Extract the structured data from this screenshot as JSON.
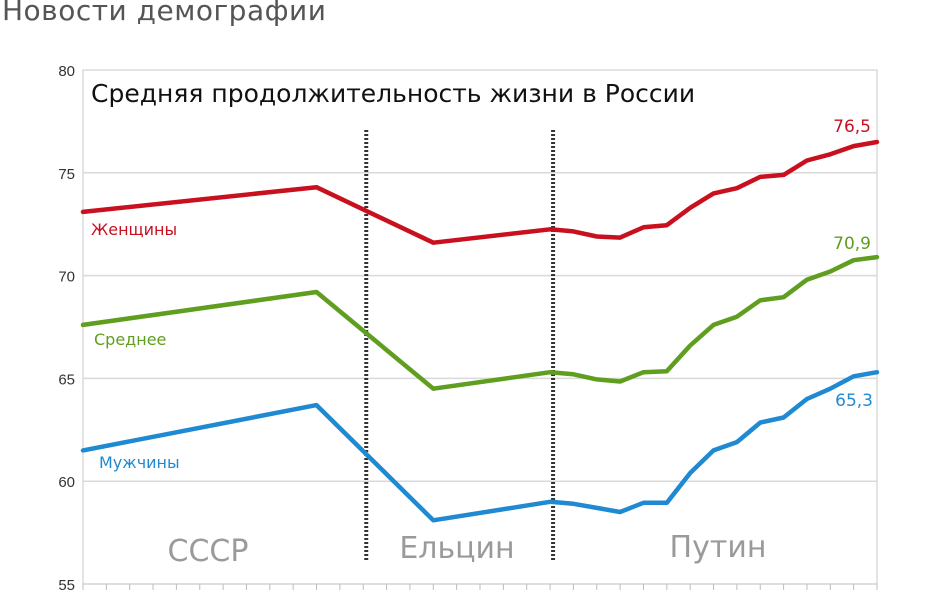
{
  "header": {
    "site_title": "Новости демографии"
  },
  "chart_data": {
    "type": "line",
    "title": "Средняя продолжительность жизни в России",
    "ylim": [
      55,
      80
    ],
    "yticks": [
      55,
      60,
      65,
      70,
      75,
      80
    ],
    "grid": true,
    "x_index_range": [
      0,
      34
    ],
    "series": [
      {
        "name": "Женщины",
        "color": "#c8101e",
        "end_label": "76,5",
        "points": [
          [
            0,
            73.1
          ],
          [
            10,
            74.3
          ],
          [
            15,
            71.6
          ],
          [
            20,
            72.25
          ],
          [
            21,
            72.15
          ],
          [
            22,
            71.9
          ],
          [
            23,
            71.85
          ],
          [
            24,
            72.35
          ],
          [
            25,
            72.45
          ],
          [
            26,
            73.3
          ],
          [
            27,
            74.0
          ],
          [
            28,
            74.25
          ],
          [
            29,
            74.8
          ],
          [
            30,
            74.9
          ],
          [
            31,
            75.6
          ],
          [
            32,
            75.9
          ],
          [
            33,
            76.3
          ],
          [
            34,
            76.5
          ]
        ]
      },
      {
        "name": "Среднее",
        "color": "#5f9e1f",
        "end_label": "70,9",
        "points": [
          [
            0,
            67.6
          ],
          [
            10,
            69.2
          ],
          [
            15,
            64.5
          ],
          [
            20,
            65.3
          ],
          [
            21,
            65.2
          ],
          [
            22,
            64.95
          ],
          [
            23,
            64.85
          ],
          [
            24,
            65.3
          ],
          [
            25,
            65.35
          ],
          [
            26,
            66.6
          ],
          [
            27,
            67.6
          ],
          [
            28,
            68.0
          ],
          [
            29,
            68.8
          ],
          [
            30,
            68.95
          ],
          [
            31,
            69.8
          ],
          [
            32,
            70.2
          ],
          [
            33,
            70.75
          ],
          [
            34,
            70.9
          ]
        ]
      },
      {
        "name": "Мужчины",
        "color": "#1f8ad2",
        "end_label": "65,3",
        "points": [
          [
            0,
            61.5
          ],
          [
            10,
            63.7
          ],
          [
            15,
            58.1
          ],
          [
            20,
            59.0
          ],
          [
            21,
            58.9
          ],
          [
            22,
            58.7
          ],
          [
            23,
            58.5
          ],
          [
            24,
            58.95
          ],
          [
            25,
            58.95
          ],
          [
            26,
            60.4
          ],
          [
            27,
            61.5
          ],
          [
            28,
            61.9
          ],
          [
            29,
            62.85
          ],
          [
            30,
            63.1
          ],
          [
            31,
            64.0
          ],
          [
            32,
            64.5
          ],
          [
            33,
            65.1
          ],
          [
            34,
            65.3
          ]
        ]
      }
    ],
    "eras": [
      {
        "label": "СССР"
      },
      {
        "label": "Ельцин"
      },
      {
        "label": "Путин"
      }
    ],
    "dividers_at": [
      12,
      20
    ]
  }
}
